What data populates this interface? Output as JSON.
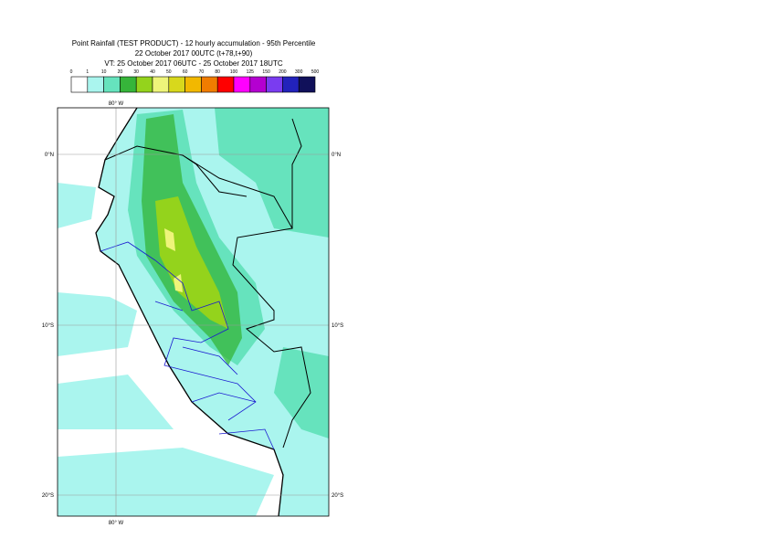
{
  "header": {
    "lines": [
      "Point Rainfall (TEST PRODUCT) - 12 hourly accumulation - 95th Percentile",
      "22 October 2017 00UTC (t+78,t+90)",
      "VT: 25 October 2017 06UTC - 25 October 2017 18UTC"
    ]
  },
  "legend": {
    "labels": [
      "0",
      "1",
      "10",
      "20",
      "30",
      "40",
      "50",
      "60",
      "70",
      "80",
      "100",
      "125",
      "150",
      "200",
      "300",
      "500"
    ],
    "colors": [
      "#ffffff",
      "#aaf5ee",
      "#66e3bd",
      "#36b53a",
      "#94d31c",
      "#eef47a",
      "#d8d81c",
      "#f2b800",
      "#f07c00",
      "#ff0000",
      "#ff00ff",
      "#b400d0",
      "#7a3cf0",
      "#2222bb",
      "#10105a"
    ]
  },
  "map": {
    "lon_top": "80° W",
    "lon_bottom": "80° W",
    "lat_left": [
      "0°N",
      "10°S",
      "20°S"
    ],
    "lat_right": [
      "0°N",
      "10°S",
      "20°S"
    ]
  }
}
